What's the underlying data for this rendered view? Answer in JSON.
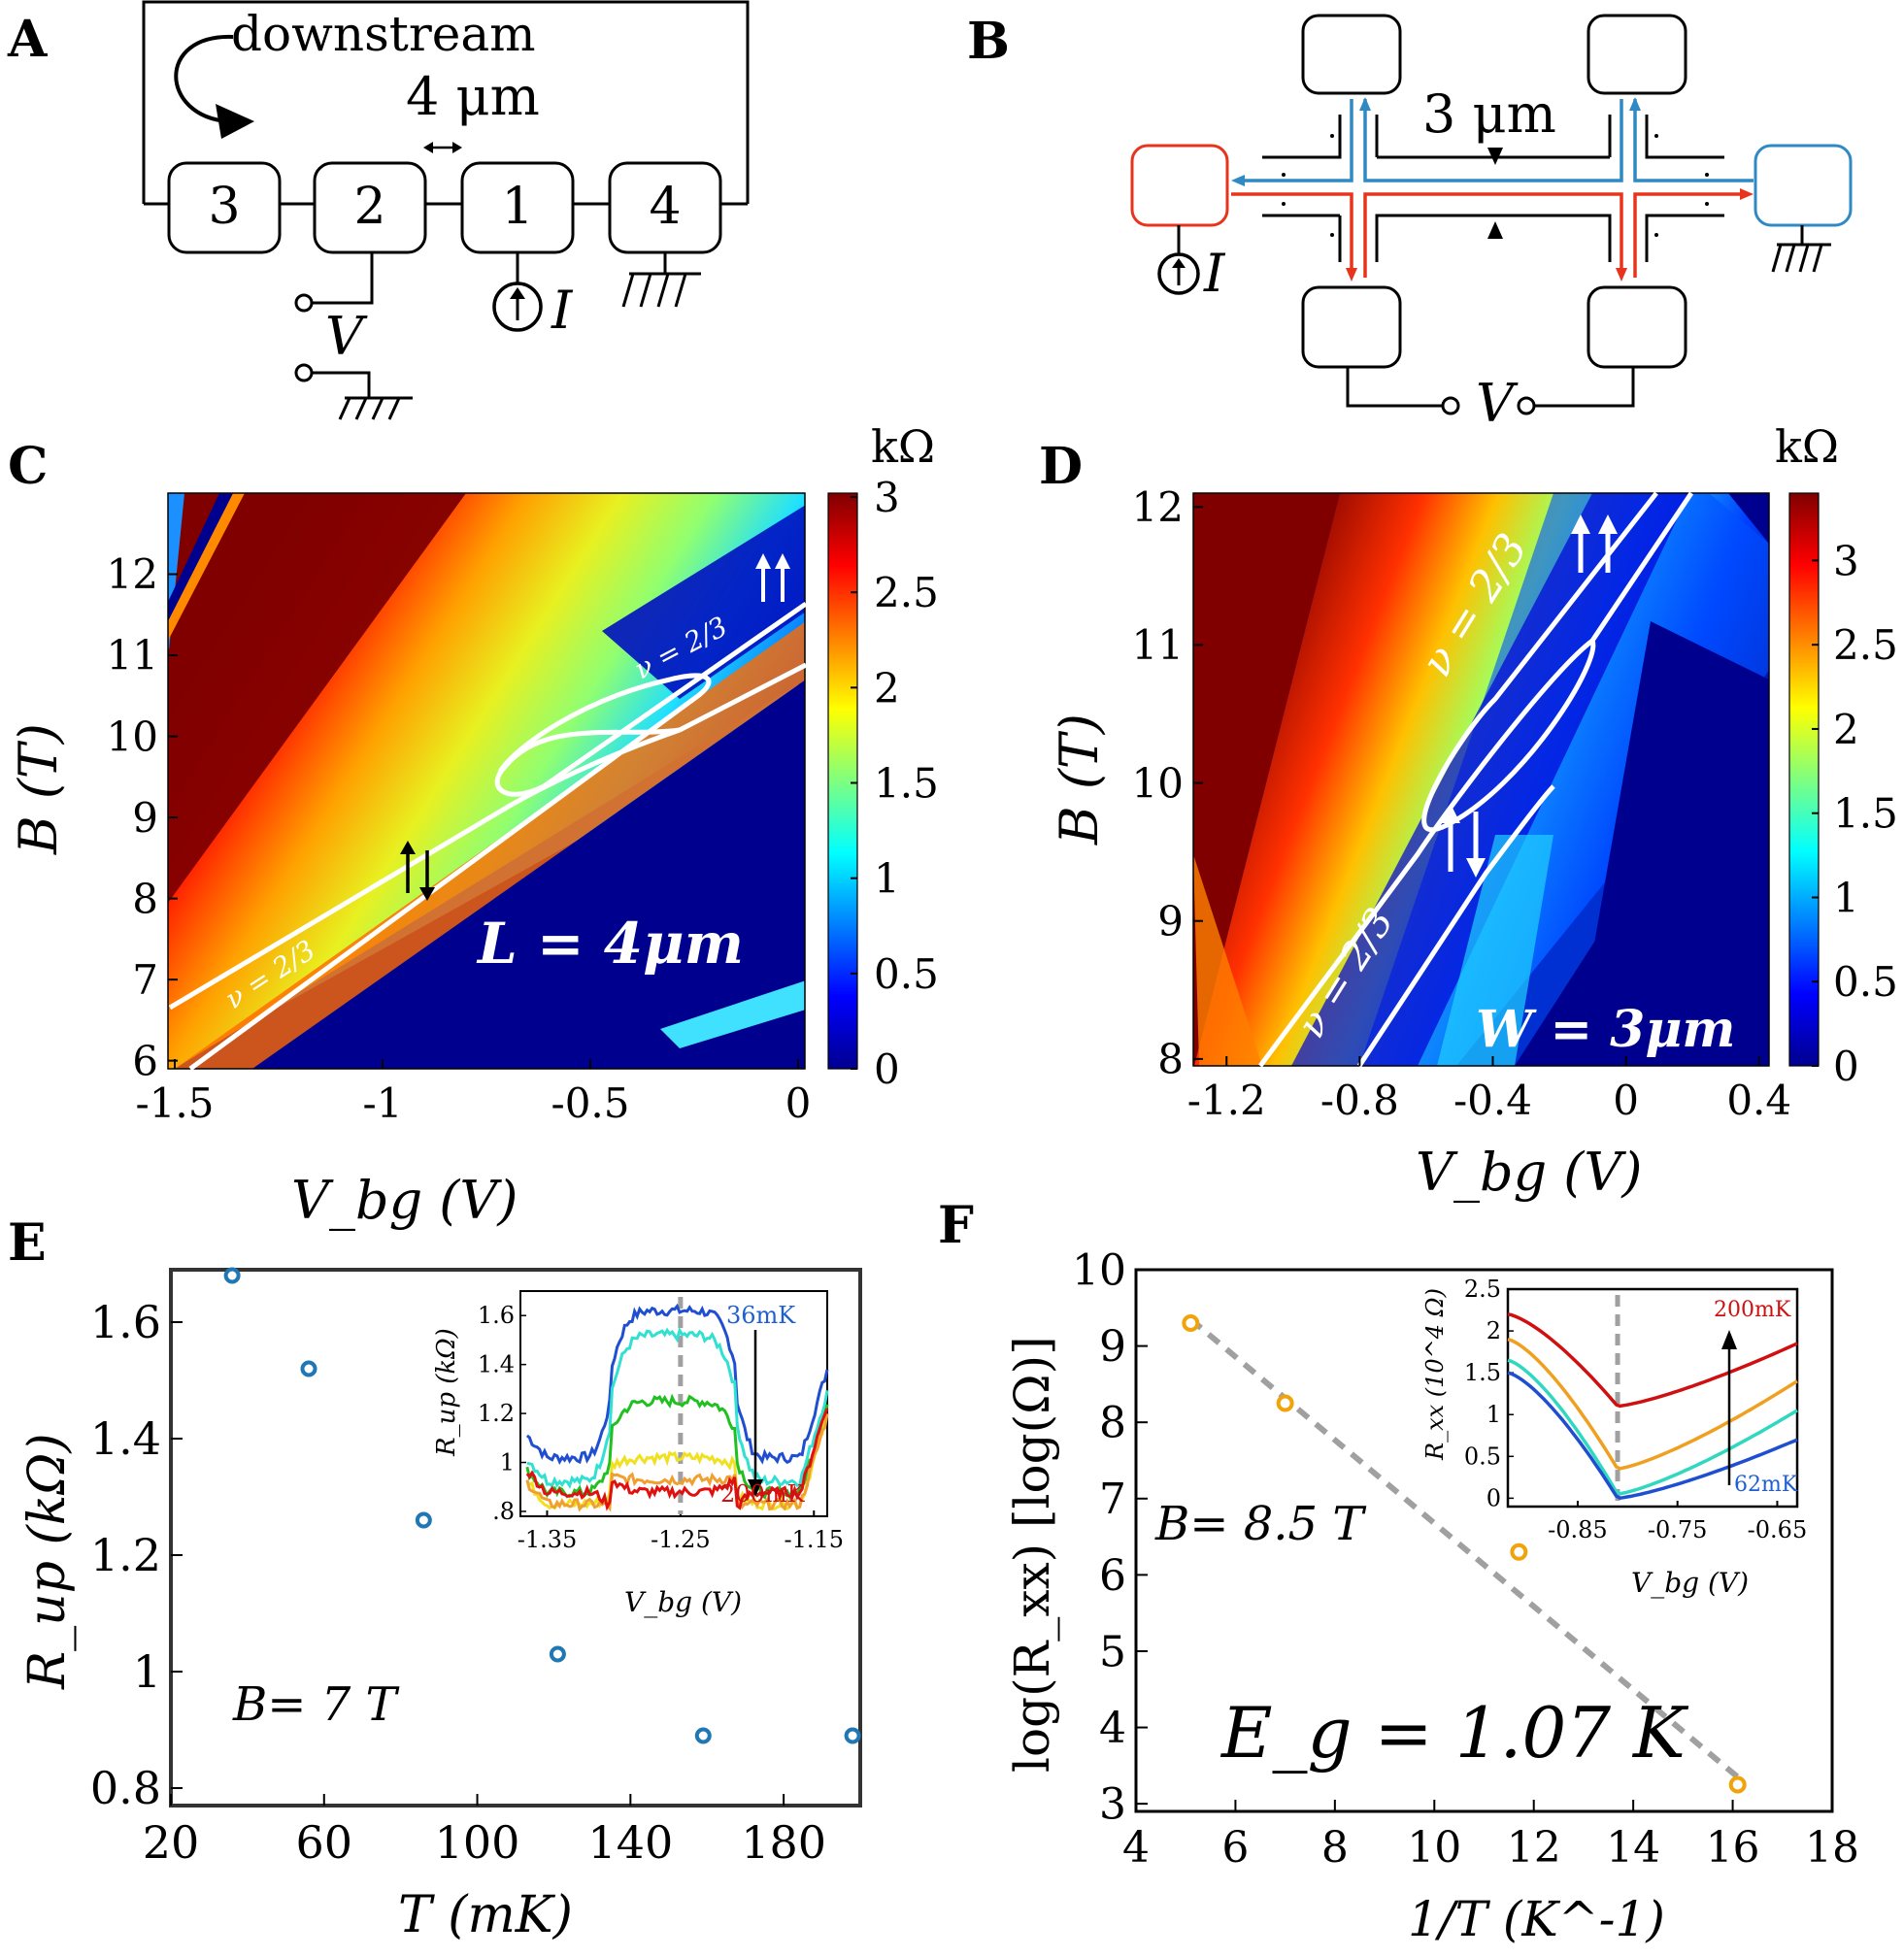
{
  "panels": {
    "A": {
      "letter": "A",
      "downstream": "downstream",
      "spacing": "4 μm",
      "contacts": [
        "3",
        "2",
        "1",
        "4"
      ],
      "voltage": "V",
      "current": "I"
    },
    "B": {
      "letter": "B",
      "width": "3 μm",
      "current": "I",
      "voltage": "V"
    },
    "C": {
      "letter": "C"
    },
    "D": {
      "letter": "D"
    },
    "E": {
      "letter": "E"
    },
    "F": {
      "letter": "F"
    }
  },
  "colors": {
    "axis": "#000000",
    "blue": "#1f77b4",
    "orange": "#f0a30a",
    "grey_dash": "#a0a0a0",
    "red_edge": "#e8341c",
    "blue_edge": "#2f8ac4",
    "map_low": "#00008f",
    "map_high": "#800000"
  },
  "chart_data": [
    {
      "id": "C",
      "type": "heatmap",
      "xlabel": "V_bg (V)",
      "ylabel": "B (T)",
      "x_ticks": [
        "-1.5",
        "-1",
        "-0.5",
        "0"
      ],
      "y_ticks": [
        "6",
        "7",
        "8",
        "9",
        "10",
        "11",
        "12"
      ],
      "xlim": [
        -1.5,
        0
      ],
      "ylim": [
        5.9,
        13.0
      ],
      "colorbar": {
        "unit": "kΩ",
        "range": [
          0,
          3
        ],
        "ticks": [
          "3",
          "2.5",
          "2",
          "1.5",
          "1",
          "0.5",
          "0"
        ]
      },
      "annotations": [
        "ν = 2/3",
        "ν = 2/3",
        "L = 4μm"
      ]
    },
    {
      "id": "D",
      "type": "heatmap",
      "xlabel": "V_bg (V)",
      "ylabel": "B (T)",
      "x_ticks": [
        "-1.2",
        "-0.8",
        "-0.4",
        "0",
        "0.4"
      ],
      "y_ticks": [
        "8",
        "9",
        "10",
        "11",
        "12"
      ],
      "xlim": [
        -1.3,
        0.43
      ],
      "ylim": [
        7.95,
        12.1
      ],
      "colorbar": {
        "unit": "kΩ",
        "range": [
          0,
          3.4
        ],
        "ticks": [
          "3",
          "2.5",
          "2",
          "1.5",
          "1",
          "0.5",
          "0"
        ]
      },
      "annotations": [
        "ν = 2/3",
        "ν = 2/3",
        "W = 3μm"
      ]
    },
    {
      "id": "E",
      "type": "scatter",
      "xlabel": "T (mK)",
      "ylabel": "R_up (kΩ)",
      "x_ticks": [
        "20",
        "60",
        "100",
        "140",
        "180"
      ],
      "y_ticks": [
        "0.8",
        "1",
        "1.2",
        "1.4",
        "1.6"
      ],
      "xlim": [
        20,
        200
      ],
      "ylim": [
        0.77,
        1.69
      ],
      "x": [
        36,
        56,
        86,
        121,
        159,
        198
      ],
      "y": [
        1.68,
        1.52,
        1.26,
        1.03,
        0.89,
        0.89
      ],
      "annotation": "B= 7 T",
      "inset": {
        "type": "line",
        "xlabel": "V_bg (V)",
        "ylabel": "R_up (kΩ)",
        "x_ticks": [
          "-1.35",
          "-1.25",
          "-1.15"
        ],
        "y_ticks": [
          "1.6",
          "1.4",
          "1.2",
          "1",
          ".8"
        ],
        "xlim": [
          -1.37,
          -1.14
        ],
        "ylim": [
          0.78,
          1.7
        ],
        "top_label": "36mK",
        "bottom_label": "200mK"
      }
    },
    {
      "id": "F",
      "type": "scatter",
      "xlabel": "1/T (K^-1)",
      "ylabel": "log(R_xx) [log(Ω)]",
      "x_ticks": [
        "4",
        "6",
        "8",
        "10",
        "12",
        "14",
        "16",
        "18"
      ],
      "y_ticks": [
        "3",
        "4",
        "5",
        "6",
        "7",
        "8",
        "9",
        "10"
      ],
      "xlim": [
        4,
        18
      ],
      "ylim": [
        2.9,
        10
      ],
      "x": [
        5.1,
        7.0,
        11.7,
        16.1
      ],
      "y": [
        9.3,
        8.25,
        6.3,
        3.25
      ],
      "fit_line": {
        "x": [
          5.1,
          16.1
        ],
        "y": [
          9.35,
          3.35
        ]
      },
      "annotations": [
        "B= 8.5 T",
        "E_g = 1.07 K"
      ],
      "inset": {
        "type": "line",
        "xlabel": "V_bg (V)",
        "ylabel": "R_xx (10^4 Ω)",
        "x_ticks": [
          "-0.85",
          "-0.75",
          "-0.65"
        ],
        "y_ticks": [
          "2.5",
          "2",
          "1.5",
          "1",
          "0.5",
          "0"
        ],
        "xlim": [
          -0.92,
          -0.63
        ],
        "ylim": [
          -0.1,
          2.5
        ],
        "top_label": "200mK",
        "bottom_label": "62mK"
      }
    }
  ]
}
